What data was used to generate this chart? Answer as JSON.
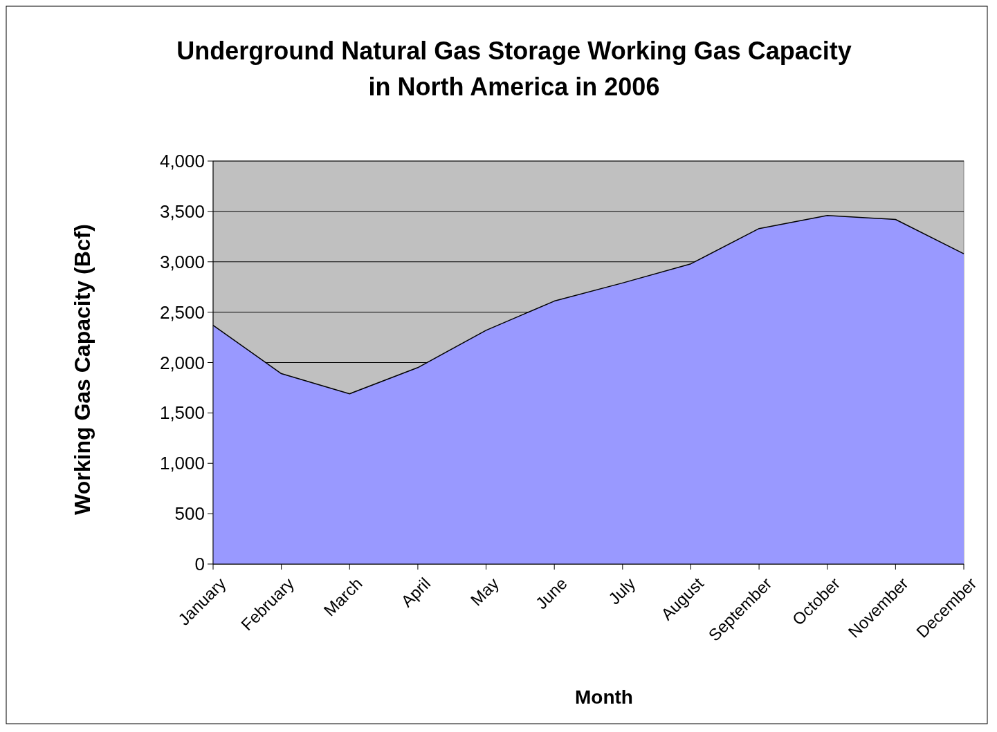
{
  "chart_data": {
    "type": "area",
    "title": "Underground Natural Gas Storage Working Gas Capacity in North America in 2006",
    "xlabel": "Month",
    "ylabel": "Working Gas Capacity (Bcf)",
    "categories": [
      "January",
      "February",
      "March",
      "April",
      "May",
      "June",
      "July",
      "August",
      "September",
      "October",
      "November",
      "December"
    ],
    "series": [
      {
        "color": "#9999ff",
        "values": [
          2370,
          1890,
          1690,
          1950,
          2320,
          2610,
          2790,
          2980,
          3330,
          3460,
          3420,
          3080
        ]
      }
    ],
    "ylim": [
      0,
      4000
    ],
    "yticks": [
      0,
      500,
      {
        "value": 1000,
        "label": "1,000"
      },
      {
        "value": 1500,
        "label": "1,500"
      },
      {
        "value": 2000,
        "label": "2,000"
      },
      {
        "value": 2500,
        "label": "2,500"
      },
      {
        "value": 3000,
        "label": "3,000"
      },
      {
        "value": 3500,
        "label": "3,500"
      },
      {
        "value": 4000,
        "label": "4,000"
      }
    ],
    "grid": "y"
  }
}
